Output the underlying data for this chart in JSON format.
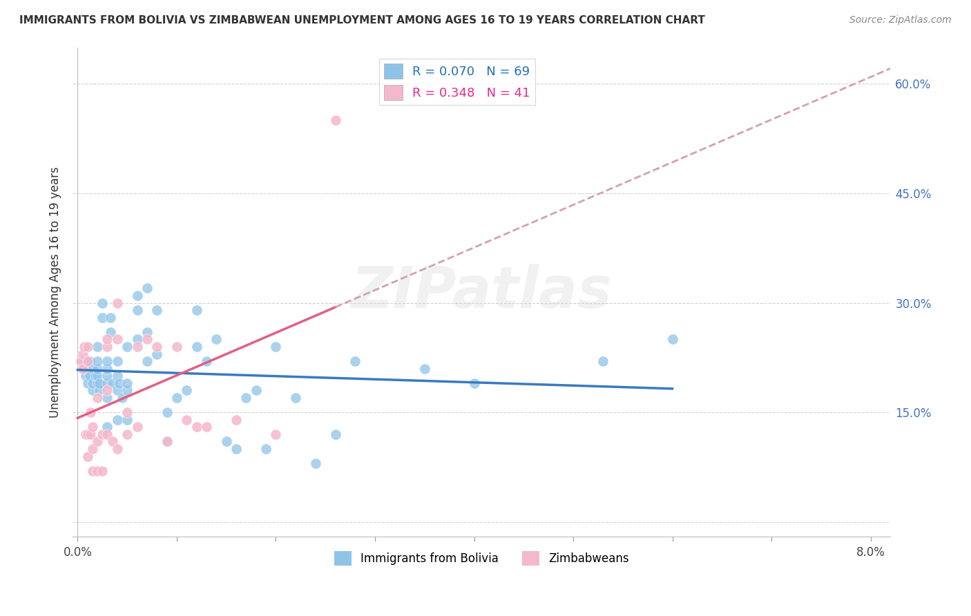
{
  "title": "IMMIGRANTS FROM BOLIVIA VS ZIMBABWEAN UNEMPLOYMENT AMONG AGES 16 TO 19 YEARS CORRELATION CHART",
  "source": "Source: ZipAtlas.com",
  "ylabel": "Unemployment Among Ages 16 to 19 years",
  "xlim": [
    -0.0005,
    0.082
  ],
  "ylim": [
    -0.02,
    0.65
  ],
  "y_tick_positions": [
    0.0,
    0.15,
    0.3,
    0.45,
    0.6
  ],
  "y_tick_labels": [
    "",
    "15.0%",
    "30.0%",
    "45.0%",
    "60.0%"
  ],
  "x_tick_positions": [
    0.0,
    0.01,
    0.02,
    0.03,
    0.04,
    0.05,
    0.06,
    0.07,
    0.08
  ],
  "x_tick_labels": [
    "0.0%",
    "",
    "",
    "",
    "",
    "",
    "",
    "",
    "8.0%"
  ],
  "legend_r1": "R = 0.070   N = 69",
  "legend_r2": "R = 0.348   N = 41",
  "color_bolivia": "#8ec4e8",
  "color_zimbabwe": "#f4b8cc",
  "color_line_bolivia": "#3a7abf",
  "color_line_zimbabwe": "#e06080",
  "color_line_zimbabwe_ext": "#d4a0b0",
  "watermark": "ZIPatlas",
  "bolivia_x": [
    0.0006,
    0.0006,
    0.0008,
    0.001,
    0.001,
    0.0012,
    0.0012,
    0.0015,
    0.0015,
    0.0015,
    0.0018,
    0.002,
    0.002,
    0.002,
    0.002,
    0.002,
    0.0022,
    0.0022,
    0.0025,
    0.0025,
    0.003,
    0.003,
    0.003,
    0.003,
    0.003,
    0.003,
    0.0033,
    0.0033,
    0.0035,
    0.004,
    0.004,
    0.004,
    0.004,
    0.0042,
    0.0045,
    0.005,
    0.005,
    0.005,
    0.005,
    0.006,
    0.006,
    0.006,
    0.007,
    0.007,
    0.007,
    0.008,
    0.008,
    0.009,
    0.009,
    0.01,
    0.011,
    0.012,
    0.012,
    0.013,
    0.014,
    0.015,
    0.016,
    0.017,
    0.018,
    0.019,
    0.02,
    0.022,
    0.024,
    0.026,
    0.028,
    0.035,
    0.04,
    0.053,
    0.06
  ],
  "bolivia_y": [
    0.21,
    0.22,
    0.2,
    0.19,
    0.22,
    0.2,
    0.22,
    0.18,
    0.19,
    0.21,
    0.2,
    0.19,
    0.2,
    0.21,
    0.22,
    0.24,
    0.18,
    0.19,
    0.28,
    0.3,
    0.13,
    0.17,
    0.19,
    0.2,
    0.21,
    0.22,
    0.26,
    0.28,
    0.19,
    0.14,
    0.18,
    0.2,
    0.22,
    0.19,
    0.17,
    0.14,
    0.18,
    0.19,
    0.24,
    0.25,
    0.29,
    0.31,
    0.22,
    0.26,
    0.32,
    0.23,
    0.29,
    0.11,
    0.15,
    0.17,
    0.18,
    0.24,
    0.29,
    0.22,
    0.25,
    0.11,
    0.1,
    0.17,
    0.18,
    0.1,
    0.24,
    0.17,
    0.08,
    0.12,
    0.22,
    0.21,
    0.19,
    0.22,
    0.25
  ],
  "zimbabwe_x": [
    0.0003,
    0.0005,
    0.0005,
    0.0007,
    0.0008,
    0.001,
    0.001,
    0.001,
    0.001,
    0.0013,
    0.0013,
    0.0015,
    0.0015,
    0.0015,
    0.002,
    0.002,
    0.002,
    0.0025,
    0.0025,
    0.003,
    0.003,
    0.003,
    0.003,
    0.0035,
    0.004,
    0.004,
    0.004,
    0.005,
    0.005,
    0.006,
    0.006,
    0.007,
    0.008,
    0.009,
    0.01,
    0.011,
    0.012,
    0.013,
    0.016,
    0.02,
    0.026
  ],
  "zimbabwe_y": [
    0.22,
    0.21,
    0.23,
    0.24,
    0.12,
    0.09,
    0.12,
    0.22,
    0.24,
    0.12,
    0.15,
    0.07,
    0.1,
    0.13,
    0.07,
    0.11,
    0.17,
    0.07,
    0.12,
    0.12,
    0.18,
    0.24,
    0.25,
    0.11,
    0.1,
    0.25,
    0.3,
    0.12,
    0.15,
    0.13,
    0.24,
    0.25,
    0.24,
    0.11,
    0.24,
    0.14,
    0.13,
    0.13,
    0.14,
    0.12,
    0.55
  ]
}
